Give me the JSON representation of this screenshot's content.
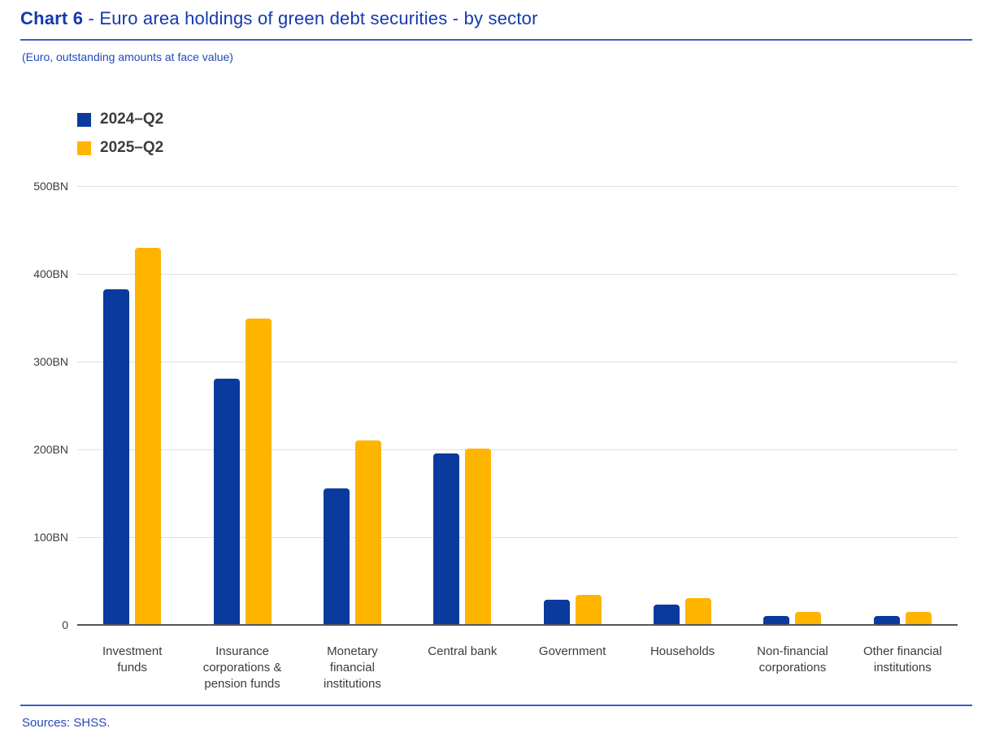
{
  "page": {
    "title_prefix": "Chart 6",
    "title_rest": " - Euro area holdings of green debt securities - by sector",
    "subtitle": "(Euro, outstanding amounts at face value)",
    "sources": "Sources: SHSS."
  },
  "colors": {
    "title_blue": "#1539AC",
    "subtitle_blue": "#2349B8",
    "rule_blue": "#3A5CC6",
    "gridline_gray": "#DFDFDF",
    "axis_gray": "#55565A",
    "label_gray": "#3C3C3B",
    "series_2024_q2": "#0A3A9E",
    "series_2025_q2": "#FFB400"
  },
  "chart_data": {
    "type": "bar",
    "title": "Euro area holdings of green debt securities - by sector",
    "subtitle": "(Euro, outstanding amounts at face value)",
    "categories": [
      "Investment funds",
      "Insurance corporations & pension funds",
      "Monetary financial institutions",
      "Central bank",
      "Government",
      "Households",
      "Non-financial corporations",
      "Other financial institutions"
    ],
    "category_lines": [
      [
        "Investment",
        "funds"
      ],
      [
        "Insurance",
        "corporations &",
        "pension funds"
      ],
      [
        "Monetary",
        "financial",
        "institutions"
      ],
      [
        "Central bank"
      ],
      [
        "Government"
      ],
      [
        "Households"
      ],
      [
        "Non-financial",
        "corporations"
      ],
      [
        "Other financial",
        "institutions"
      ]
    ],
    "series": [
      {
        "name": "2024–Q2",
        "color": "#0A3A9E",
        "values": [
          382,
          281,
          156,
          195,
          29,
          23,
          10,
          10
        ]
      },
      {
        "name": "2025–Q2",
        "color": "#FFB400",
        "values": [
          430,
          349,
          210,
          201,
          34,
          31,
          15,
          15
        ]
      }
    ],
    "xlabel": "",
    "ylabel": "",
    "ylim": [
      0,
      500
    ],
    "ytick_labels": [
      "500BN",
      "400BN",
      "300BN",
      "200BN",
      "100BN",
      "0"
    ],
    "grid": true,
    "legend_position": "top-left"
  }
}
